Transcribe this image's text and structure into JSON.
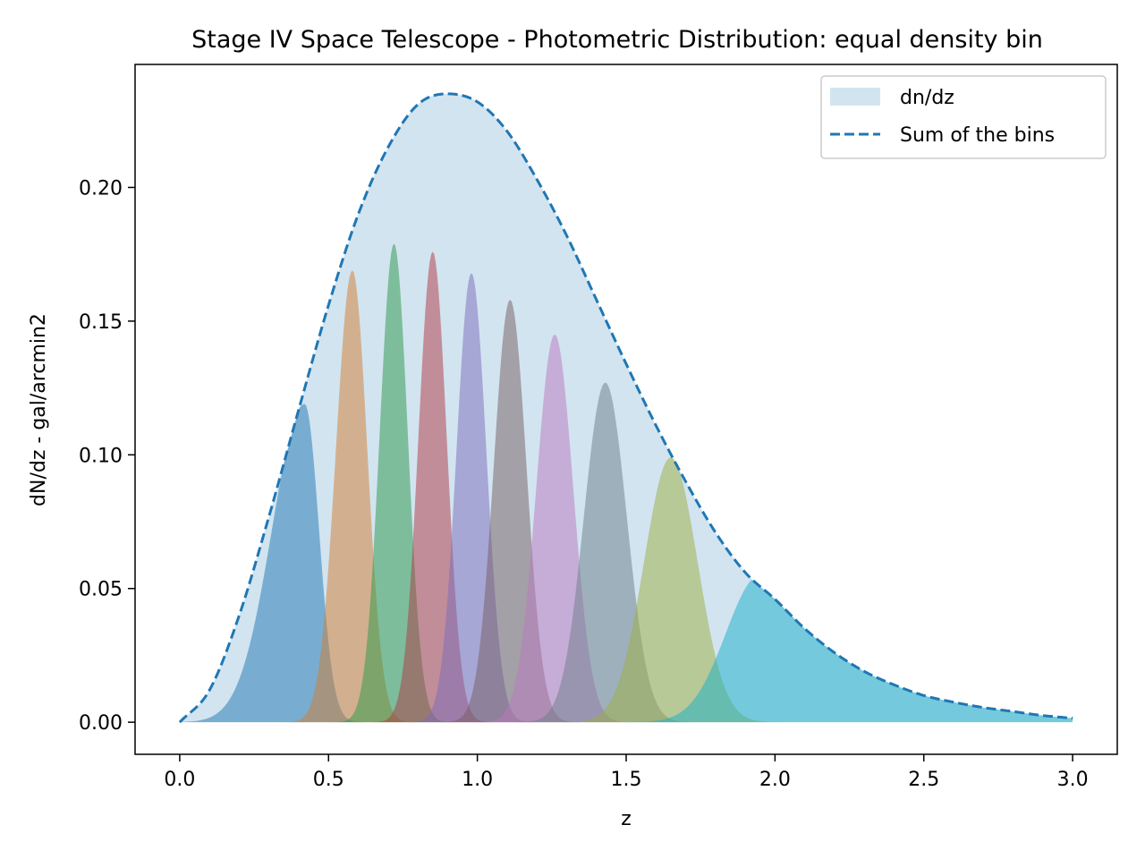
{
  "chart_data": {
    "type": "area",
    "title": "Stage IV Space Telescope - Photometric Distribution: equal density bin",
    "xlabel": "z",
    "ylabel": "dN/dz - gal/arcmin2",
    "xlim": [
      -0.15,
      3.15
    ],
    "ylim": [
      -0.012,
      0.246
    ],
    "grid": false,
    "legend_position": "top-right",
    "xticks": [
      0.0,
      0.5,
      1.0,
      1.5,
      2.0,
      2.5,
      3.0
    ],
    "xtick_labels": [
      "0.0",
      "0.5",
      "1.0",
      "1.5",
      "2.0",
      "2.5",
      "3.0"
    ],
    "yticks": [
      0.0,
      0.05,
      0.1,
      0.15,
      0.2
    ],
    "ytick_labels": [
      "0.00",
      "0.05",
      "0.10",
      "0.15",
      "0.20"
    ],
    "legend": [
      {
        "label": "dn/dz",
        "style": "fill",
        "color": "#1f77b4"
      },
      {
        "label": "Sum of the bins",
        "style": "dashed",
        "color": "#1f77b4"
      }
    ],
    "total": {
      "x": [
        0.0,
        0.1,
        0.2,
        0.3,
        0.4,
        0.5,
        0.6,
        0.7,
        0.8,
        0.9,
        1.0,
        1.1,
        1.2,
        1.3,
        1.4,
        1.5,
        1.6,
        1.7,
        1.8,
        1.9,
        2.0,
        2.1,
        2.2,
        2.3,
        2.4,
        2.5,
        2.6,
        2.7,
        2.8,
        2.9,
        3.0
      ],
      "y": [
        0.0,
        0.012,
        0.04,
        0.077,
        0.117,
        0.156,
        0.19,
        0.215,
        0.231,
        0.235,
        0.232,
        0.221,
        0.203,
        0.182,
        0.158,
        0.134,
        0.111,
        0.09,
        0.071,
        0.056,
        0.046,
        0.035,
        0.026,
        0.019,
        0.014,
        0.01,
        0.0075,
        0.0055,
        0.004,
        0.0025,
        0.0015
      ]
    },
    "bins": [
      {
        "peak": 0.42,
        "height": 0.119,
        "sigma_left": 0.11,
        "sigma_right": 0.048,
        "color": "#1f77b4"
      },
      {
        "peak": 0.58,
        "height": 0.169,
        "sigma_left": 0.055,
        "sigma_right": 0.05,
        "color": "#ff7f0e"
      },
      {
        "peak": 0.72,
        "height": 0.179,
        "sigma_left": 0.048,
        "sigma_right": 0.046,
        "color": "#2ca02c"
      },
      {
        "peak": 0.85,
        "height": 0.176,
        "sigma_left": 0.048,
        "sigma_right": 0.047,
        "color": "#d62728"
      },
      {
        "peak": 0.98,
        "height": 0.168,
        "sigma_left": 0.05,
        "sigma_right": 0.05,
        "color": "#9467bd"
      },
      {
        "peak": 1.11,
        "height": 0.158,
        "sigma_left": 0.055,
        "sigma_right": 0.055,
        "color": "#8c564b"
      },
      {
        "peak": 1.26,
        "height": 0.145,
        "sigma_left": 0.062,
        "sigma_right": 0.062,
        "color": "#e377c2"
      },
      {
        "peak": 1.43,
        "height": 0.127,
        "sigma_left": 0.072,
        "sigma_right": 0.072,
        "color": "#7f7f7f"
      },
      {
        "peak": 1.65,
        "height": 0.099,
        "sigma_left": 0.09,
        "sigma_right": 0.09,
        "color": "#bcbd22"
      },
      {
        "peak": 1.95,
        "height": 0.055,
        "sigma_left": 0.115,
        "sigma_right": 0.0,
        "color": "#17becf"
      }
    ]
  }
}
